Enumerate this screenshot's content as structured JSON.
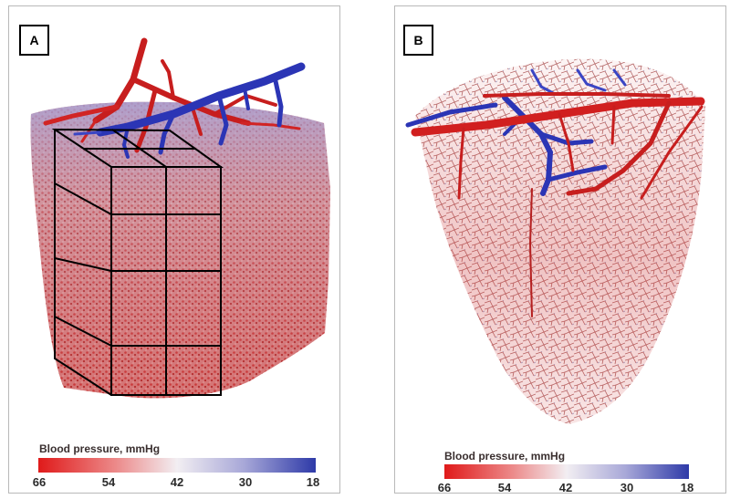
{
  "panels": [
    {
      "label": "A",
      "colorbar": {
        "title": "Blood pressure, mmHg",
        "ticks": [
          "66",
          "54",
          "42",
          "30",
          "18"
        ],
        "colors": {
          "high": "#e01a1a",
          "mid": "#f2eef2",
          "low": "#2e3aa8"
        }
      }
    },
    {
      "label": "B",
      "colorbar": {
        "title": "Blood pressure, mmHg",
        "ticks": [
          "66",
          "54",
          "42",
          "30",
          "18"
        ],
        "colors": {
          "high": "#e01a1a",
          "mid": "#f2eef2",
          "low": "#2e3aa8"
        }
      }
    }
  ]
}
